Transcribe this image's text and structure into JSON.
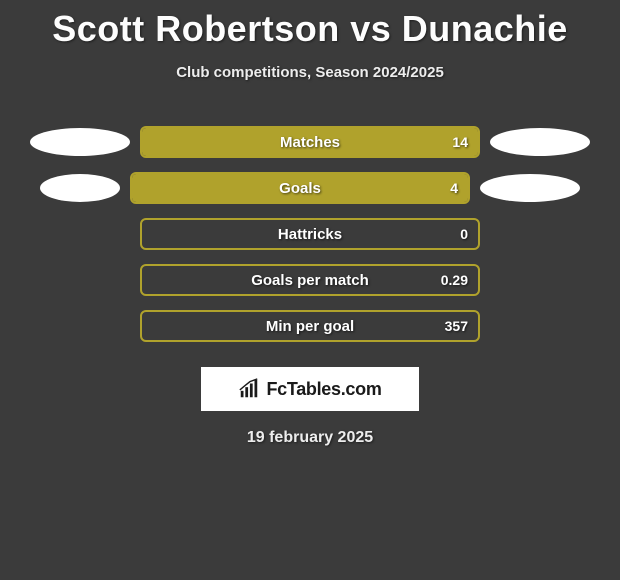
{
  "title": "Scott Robertson vs Dunachie",
  "subtitle": "Club competitions, Season 2024/2025",
  "colors": {
    "accent": "#b0a22c",
    "accent_fill": "#b0a22c",
    "ellipse": "#ffffff",
    "background": "#3b3b3b"
  },
  "stats": [
    {
      "label": "Matches",
      "value": "14",
      "fill_pct": 100,
      "show_ellipses": true,
      "ellipse_left_w": 100,
      "ellipse_right_w": 100
    },
    {
      "label": "Goals",
      "value": "4",
      "fill_pct": 100,
      "show_ellipses": true,
      "ellipse_left_w": 80,
      "ellipse_right_w": 100
    },
    {
      "label": "Hattricks",
      "value": "0",
      "fill_pct": 0,
      "show_ellipses": false
    },
    {
      "label": "Goals per match",
      "value": "0.29",
      "fill_pct": 0,
      "show_ellipses": false
    },
    {
      "label": "Min per goal",
      "value": "357",
      "fill_pct": 0,
      "show_ellipses": false
    }
  ],
  "logo_text": "FcTables.com",
  "date": "19 february 2025"
}
